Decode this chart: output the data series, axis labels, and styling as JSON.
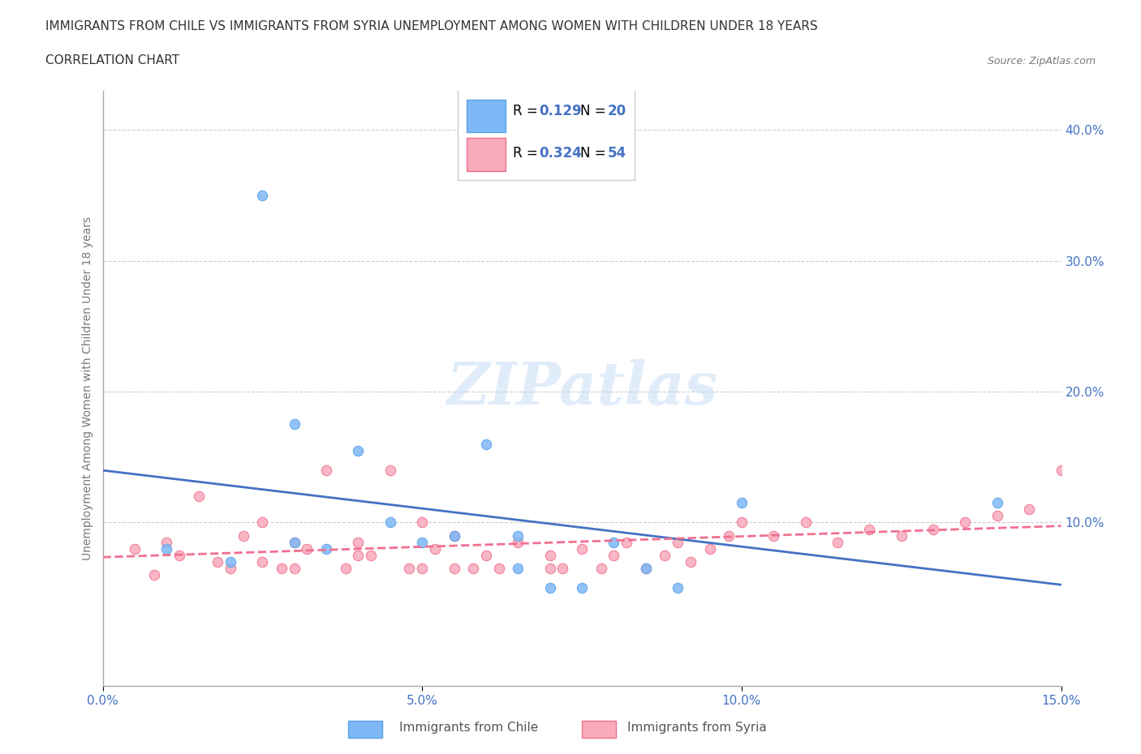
{
  "title_line1": "IMMIGRANTS FROM CHILE VS IMMIGRANTS FROM SYRIA UNEMPLOYMENT AMONG WOMEN WITH CHILDREN UNDER 18 YEARS",
  "title_line2": "CORRELATION CHART",
  "source_text": "Source: ZipAtlas.com",
  "xlabel": "",
  "ylabel": "Unemployment Among Women with Children Under 18 years",
  "xlim": [
    0.0,
    0.15
  ],
  "ylim": [
    -0.02,
    0.42
  ],
  "xtick_labels": [
    "0.0%",
    "5.0%",
    "10.0%",
    "15.0%"
  ],
  "xtick_vals": [
    0.0,
    0.05,
    0.1,
    0.15
  ],
  "ytick_labels": [
    "10.0%",
    "20.0%",
    "30.0%",
    "40.0%"
  ],
  "ytick_vals": [
    0.1,
    0.2,
    0.3,
    0.4
  ],
  "chile_color": "#7EB8F7",
  "chile_color_dark": "#5BA3E8",
  "syria_color": "#F9AABB",
  "syria_color_dark": "#F07090",
  "watermark": "ZIPatlas",
  "legend_R_chile": "0.129",
  "legend_N_chile": "20",
  "legend_R_syria": "0.324",
  "legend_N_syria": "54",
  "blue_text_color": "#4472C4",
  "chile_scatter_x": [
    0.01,
    0.02,
    0.025,
    0.03,
    0.03,
    0.035,
    0.04,
    0.045,
    0.05,
    0.055,
    0.06,
    0.065,
    0.065,
    0.07,
    0.075,
    0.08,
    0.085,
    0.09,
    0.1,
    0.14
  ],
  "chile_scatter_y": [
    0.08,
    0.07,
    0.35,
    0.085,
    0.175,
    0.08,
    0.155,
    0.1,
    0.085,
    0.09,
    0.16,
    0.065,
    0.09,
    0.05,
    0.05,
    0.085,
    0.065,
    0.05,
    0.115,
    0.115
  ],
  "syria_scatter_x": [
    0.005,
    0.008,
    0.01,
    0.012,
    0.015,
    0.018,
    0.02,
    0.022,
    0.025,
    0.025,
    0.028,
    0.03,
    0.03,
    0.032,
    0.035,
    0.038,
    0.04,
    0.04,
    0.042,
    0.045,
    0.048,
    0.05,
    0.05,
    0.052,
    0.055,
    0.055,
    0.058,
    0.06,
    0.062,
    0.065,
    0.07,
    0.07,
    0.072,
    0.075,
    0.078,
    0.08,
    0.082,
    0.085,
    0.088,
    0.09,
    0.092,
    0.095,
    0.098,
    0.1,
    0.105,
    0.11,
    0.115,
    0.12,
    0.125,
    0.13,
    0.135,
    0.14,
    0.145,
    0.15
  ],
  "syria_scatter_y": [
    0.08,
    0.06,
    0.085,
    0.075,
    0.12,
    0.07,
    0.065,
    0.09,
    0.1,
    0.07,
    0.065,
    0.085,
    0.065,
    0.08,
    0.14,
    0.065,
    0.075,
    0.085,
    0.075,
    0.14,
    0.065,
    0.1,
    0.065,
    0.08,
    0.09,
    0.065,
    0.065,
    0.075,
    0.065,
    0.085,
    0.065,
    0.075,
    0.065,
    0.08,
    0.065,
    0.075,
    0.085,
    0.065,
    0.075,
    0.085,
    0.07,
    0.08,
    0.09,
    0.1,
    0.09,
    0.1,
    0.085,
    0.095,
    0.09,
    0.095,
    0.1,
    0.105,
    0.11,
    0.14
  ]
}
